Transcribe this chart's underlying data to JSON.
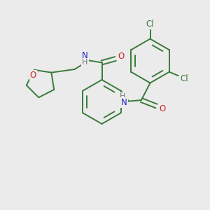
{
  "bg_color": "#ebebeb",
  "bond_color": "#3a7a3a",
  "bond_width": 1.4,
  "atom_colors": {
    "N": "#2020cc",
    "O": "#cc2020",
    "Cl": "#3a7a3a",
    "H": "#777777"
  },
  "font_size": 8.5,
  "fig_size": [
    3.0,
    3.0
  ],
  "dpi": 100
}
